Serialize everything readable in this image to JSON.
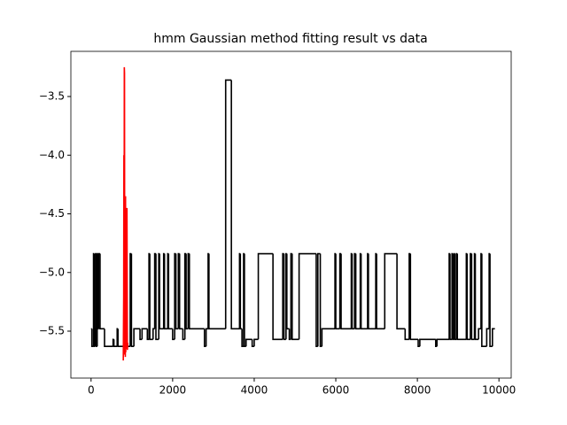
{
  "chart_data": {
    "type": "line",
    "title": "hmm Gaussian method fitting result vs data",
    "xlim": [
      -495,
      10300
    ],
    "ylim": [
      -5.9,
      -3.115
    ],
    "xticks": [
      0,
      2000,
      4000,
      6000,
      8000,
      10000
    ],
    "yticks": [
      {
        "value": -3.5,
        "label": "−3.5"
      },
      {
        "value": -4.0,
        "label": "−4.0"
      },
      {
        "value": -4.5,
        "label": "−4.5"
      },
      {
        "value": -5.0,
        "label": "−5.0"
      },
      {
        "value": -5.5,
        "label": "−5.5"
      }
    ],
    "series": [
      {
        "color": "#000000",
        "drawstyle": "steps-post",
        "x": [
          0,
          20,
          60,
          80,
          100,
          110,
          130,
          150,
          170,
          190,
          220,
          330,
          540,
          560,
          640,
          660,
          960,
          990,
          1050,
          1200,
          1250,
          1380,
          1420,
          1440,
          1520,
          1560,
          1590,
          1660,
          1680,
          1780,
          1800,
          1880,
          1900,
          2000,
          2050,
          2080,
          2140,
          2170,
          2250,
          2300,
          2330,
          2380,
          2410,
          2780,
          2820,
          2870,
          2890,
          3300,
          3440,
          3640,
          3660,
          3700,
          3740,
          3760,
          3800,
          3950,
          4000,
          4100,
          4460,
          4700,
          4730,
          4780,
          4800,
          4860,
          4900,
          4930,
          5100,
          5520,
          5560,
          5620,
          5660,
          5980,
          6000,
          6100,
          6130,
          6380,
          6400,
          6460,
          6490,
          6600,
          6620,
          6780,
          6800,
          6980,
          7000,
          7200,
          7500,
          7700,
          7800,
          7830,
          8020,
          8060,
          8450,
          8480,
          8780,
          8800,
          8850,
          8870,
          8900,
          8920,
          8960,
          8980,
          9200,
          9220,
          9300,
          9330,
          9400,
          9420,
          9500,
          9560,
          9580,
          9700,
          9760,
          9780,
          9840,
          9900
        ],
        "values": [
          -5.48,
          -5.63,
          -4.84,
          -5.63,
          -5.48,
          -4.84,
          -5.63,
          -4.84,
          -5.48,
          -4.84,
          -5.48,
          -5.63,
          -5.57,
          -5.63,
          -5.48,
          -5.63,
          -4.84,
          -5.63,
          -5.48,
          -5.57,
          -5.48,
          -5.57,
          -4.84,
          -5.57,
          -5.48,
          -4.84,
          -5.57,
          -4.84,
          -5.48,
          -4.84,
          -5.48,
          -4.84,
          -5.48,
          -5.57,
          -4.84,
          -5.48,
          -4.84,
          -5.48,
          -5.57,
          -4.84,
          -5.48,
          -4.84,
          -5.48,
          -5.63,
          -5.48,
          -4.84,
          -5.48,
          -3.36,
          -5.48,
          -4.84,
          -5.48,
          -5.63,
          -4.84,
          -5.63,
          -5.57,
          -5.63,
          -5.57,
          -4.84,
          -5.57,
          -4.84,
          -5.57,
          -4.84,
          -5.48,
          -5.57,
          -4.84,
          -5.57,
          -4.84,
          -5.63,
          -4.84,
          -5.63,
          -5.48,
          -4.84,
          -5.48,
          -4.84,
          -5.48,
          -4.84,
          -5.48,
          -4.84,
          -5.48,
          -4.84,
          -5.48,
          -4.84,
          -5.48,
          -4.84,
          -5.48,
          -4.84,
          -5.48,
          -5.57,
          -4.84,
          -5.57,
          -5.63,
          -5.57,
          -5.63,
          -5.57,
          -4.84,
          -5.57,
          -4.84,
          -5.57,
          -4.84,
          -5.57,
          -4.84,
          -5.57,
          -4.84,
          -5.57,
          -4.84,
          -5.57,
          -4.84,
          -5.57,
          -5.48,
          -4.84,
          -5.63,
          -5.48,
          -4.84,
          -5.63,
          -5.48,
          -5.48
        ]
      },
      {
        "color": "#ff0000",
        "x": [
          790,
          800,
          805,
          810,
          815,
          820,
          825,
          830,
          840,
          845,
          850,
          860,
          870,
          880,
          890,
          900
        ],
        "values": [
          -5.75,
          -5.2,
          -4.0,
          -5.6,
          -3.25,
          -3.3,
          -5.7,
          -4.5,
          -5.72,
          -4.35,
          -5.68,
          -4.48,
          -5.65,
          -4.45,
          -5.66,
          -5.6
        ]
      }
    ]
  }
}
